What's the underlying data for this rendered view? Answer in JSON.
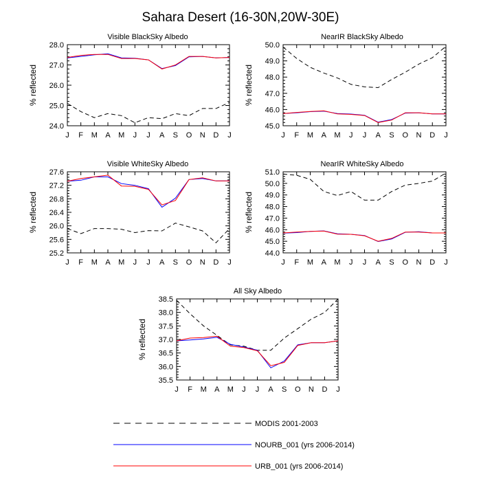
{
  "figure": {
    "title": "Sahara Desert (16-30N,20W-30E)",
    "month_labels": [
      "J",
      "F",
      "M",
      "A",
      "M",
      "J",
      "J",
      "A",
      "S",
      "O",
      "N",
      "D",
      "J"
    ]
  },
  "legend": [
    {
      "key": "modis",
      "label": "MODIS 2001-2003",
      "color": "#000000",
      "dash": true
    },
    {
      "key": "nourb",
      "label": "NOURB_001 (yrs 2006-2014)",
      "color": "#0000ff",
      "dash": false
    },
    {
      "key": "urb",
      "label": "URB_001 (yrs 2006-2014)",
      "color": "#ff0000",
      "dash": false
    }
  ],
  "chart_data": [
    {
      "type": "line",
      "title": "Visible BlackSky Albedo",
      "ylabel": "% reflected",
      "ylim": [
        24.0,
        28.0
      ],
      "yticks": [
        "24.0",
        "25.0",
        "26.0",
        "27.0",
        "28.0"
      ],
      "x": [
        "J",
        "F",
        "M",
        "A",
        "M",
        "J",
        "J",
        "A",
        "S",
        "O",
        "N",
        "D",
        "J"
      ],
      "series": [
        {
          "name": "MODIS 2001-2003",
          "values": [
            25.1,
            24.7,
            24.4,
            24.6,
            24.5,
            24.15,
            24.4,
            24.35,
            24.6,
            24.5,
            24.85,
            24.85,
            25.15
          ]
        },
        {
          "name": "NOURB_001 (yrs 2006-2014)",
          "values": [
            27.35,
            27.42,
            27.5,
            27.55,
            27.35,
            27.33,
            27.25,
            26.82,
            26.97,
            27.4,
            27.42,
            27.35,
            27.37
          ]
        },
        {
          "name": "URB_001 (yrs 2006-2014)",
          "values": [
            27.37,
            27.47,
            27.52,
            27.52,
            27.32,
            27.32,
            27.25,
            26.8,
            27.0,
            27.42,
            27.42,
            27.35,
            27.37
          ]
        }
      ]
    },
    {
      "type": "line",
      "title": "NearIR BlackSky Albedo",
      "ylabel": "% reflected",
      "ylim": [
        45.0,
        50.0
      ],
      "yticks": [
        "45.0",
        "46.0",
        "47.0",
        "48.0",
        "49.0",
        "50.0"
      ],
      "x": [
        "J",
        "F",
        "M",
        "A",
        "M",
        "J",
        "J",
        "A",
        "S",
        "O",
        "N",
        "D",
        "J"
      ],
      "series": [
        {
          "name": "MODIS 2001-2003",
          "values": [
            49.85,
            49.15,
            48.6,
            48.25,
            47.95,
            47.55,
            47.4,
            47.35,
            47.85,
            48.3,
            48.8,
            49.2,
            49.9
          ]
        },
        {
          "name": "NOURB_001 (yrs 2006-2014)",
          "values": [
            45.75,
            45.8,
            45.87,
            45.9,
            45.75,
            45.72,
            45.65,
            45.22,
            45.38,
            45.78,
            45.8,
            45.73,
            45.73
          ]
        },
        {
          "name": "URB_001 (yrs 2006-2014)",
          "values": [
            45.75,
            45.82,
            45.88,
            45.92,
            45.73,
            45.7,
            45.63,
            45.2,
            45.35,
            45.8,
            45.8,
            45.73,
            45.73
          ]
        }
      ]
    },
    {
      "type": "line",
      "title": "Visible WhiteSky Albedo",
      "ylabel": "% reflected",
      "ylim": [
        25.2,
        27.6
      ],
      "yticks": [
        "25.2",
        "25.6",
        "26.0",
        "26.4",
        "26.8",
        "27.2",
        "27.6"
      ],
      "x": [
        "J",
        "F",
        "M",
        "A",
        "M",
        "J",
        "J",
        "A",
        "S",
        "O",
        "N",
        "D",
        "J"
      ],
      "series": [
        {
          "name": "MODIS 2001-2003",
          "values": [
            25.92,
            25.77,
            25.92,
            25.92,
            25.9,
            25.8,
            25.86,
            25.85,
            26.08,
            25.97,
            25.85,
            25.5,
            25.92
          ]
        },
        {
          "name": "NOURB_001 (yrs 2006-2014)",
          "values": [
            27.32,
            27.35,
            27.45,
            27.45,
            27.25,
            27.2,
            27.1,
            26.55,
            26.82,
            27.37,
            27.4,
            27.33,
            27.33
          ]
        },
        {
          "name": "URB_001 (yrs 2006-2014)",
          "values": [
            27.32,
            27.4,
            27.45,
            27.5,
            27.18,
            27.17,
            27.08,
            26.62,
            26.75,
            27.37,
            27.42,
            27.33,
            27.33
          ]
        }
      ]
    },
    {
      "type": "line",
      "title": "NearIR WhiteSky Albedo",
      "ylabel": "% reflected",
      "ylim": [
        44.0,
        51.0
      ],
      "yticks": [
        "44.0",
        "45.0",
        "46.0",
        "47.0",
        "48.0",
        "49.0",
        "50.0",
        "51.0"
      ],
      "x": [
        "J",
        "F",
        "M",
        "A",
        "M",
        "J",
        "J",
        "A",
        "S",
        "O",
        "N",
        "D",
        "J"
      ],
      "series": [
        {
          "name": "MODIS 2001-2003",
          "values": [
            50.8,
            50.7,
            50.35,
            49.3,
            48.95,
            49.3,
            48.55,
            48.55,
            49.3,
            49.85,
            50.0,
            50.2,
            50.9
          ]
        },
        {
          "name": "NOURB_001 (yrs 2006-2014)",
          "values": [
            45.7,
            45.75,
            45.85,
            45.9,
            45.65,
            45.6,
            45.5,
            44.98,
            45.2,
            45.78,
            45.82,
            45.72,
            45.72
          ]
        },
        {
          "name": "URB_001 (yrs 2006-2014)",
          "values": [
            45.72,
            45.8,
            45.85,
            45.88,
            45.62,
            45.6,
            45.48,
            45.0,
            45.25,
            45.8,
            45.8,
            45.72,
            45.72
          ]
        }
      ]
    },
    {
      "type": "line",
      "title": "All Sky Albedo",
      "ylabel": "% reflected",
      "ylim": [
        35.5,
        38.5
      ],
      "yticks": [
        "35.5",
        "36.0",
        "36.5",
        "37.0",
        "37.5",
        "38.0",
        "38.5"
      ],
      "x": [
        "J",
        "F",
        "M",
        "A",
        "M",
        "J",
        "J",
        "A",
        "S",
        "O",
        "N",
        "D",
        "J"
      ],
      "series": [
        {
          "name": "MODIS 2001-2003",
          "values": [
            38.45,
            37.95,
            37.5,
            37.15,
            36.8,
            36.75,
            36.6,
            36.6,
            37.05,
            37.4,
            37.75,
            38.0,
            38.5
          ]
        },
        {
          "name": "NOURB_001 (yrs 2006-2014)",
          "values": [
            36.95,
            36.98,
            37.02,
            37.08,
            36.82,
            36.72,
            36.6,
            35.95,
            36.2,
            36.8,
            36.88,
            36.88,
            36.95
          ]
        },
        {
          "name": "URB_001 (yrs 2006-2014)",
          "values": [
            36.95,
            37.05,
            37.07,
            37.12,
            36.75,
            36.7,
            36.58,
            36.03,
            36.15,
            36.78,
            36.88,
            36.88,
            36.95
          ]
        }
      ]
    }
  ]
}
